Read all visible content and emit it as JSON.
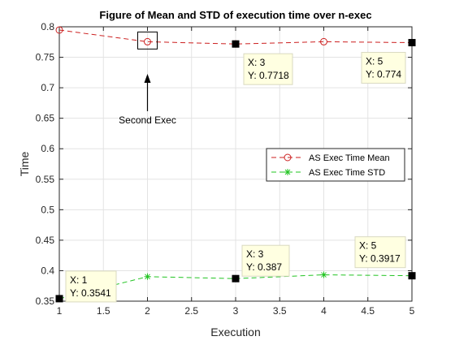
{
  "chart_data": {
    "type": "line",
    "title": "Figure of Mean and STD of execution time over n-exec",
    "xlabel": "Execution",
    "ylabel": "Time",
    "xlim": [
      1,
      5
    ],
    "ylim": [
      0.35,
      0.8
    ],
    "xticks": [
      1,
      1.5,
      2,
      2.5,
      3,
      3.5,
      4,
      4.5,
      5
    ],
    "xtick_labels": [
      "1",
      "1.5",
      "2",
      "2.5",
      "3",
      "3.5",
      "4",
      "4.5",
      "5"
    ],
    "yticks": [
      0.35,
      0.4,
      0.45,
      0.5,
      0.55,
      0.6,
      0.65,
      0.7,
      0.75,
      0.8
    ],
    "ytick_labels": [
      "0.35",
      "0.4",
      "0.45",
      "0.5",
      "0.55",
      "0.6",
      "0.65",
      "0.7",
      "0.75",
      "0.8"
    ],
    "grid": true,
    "legend_position": "middle-right",
    "series": [
      {
        "name": "AS Exec Time Mean",
        "color": "#cc1f1f",
        "marker": "circle",
        "x": [
          1,
          2,
          3,
          4,
          5
        ],
        "y": [
          0.7947,
          0.7755,
          0.7718,
          0.7755,
          0.774
        ]
      },
      {
        "name": "AS Exec Time STD",
        "color": "#22c422",
        "marker": "asterisk",
        "x": [
          1,
          2,
          3,
          4,
          5
        ],
        "y": [
          0.3541,
          0.3902,
          0.387,
          0.3932,
          0.3917
        ]
      }
    ],
    "datatips": [
      {
        "series": 0,
        "x": 3,
        "y": 0.7718,
        "line1": "X: 3",
        "line2": "Y: 0.7718"
      },
      {
        "series": 0,
        "x": 5,
        "y": 0.774,
        "line1": "X: 5",
        "line2": "Y: 0.774"
      },
      {
        "series": 1,
        "x": 1,
        "y": 0.3541,
        "line1": "X: 1",
        "line2": "Y: 0.3541"
      },
      {
        "series": 1,
        "x": 3,
        "y": 0.387,
        "line1": "X: 3",
        "line2": "Y: 0.387"
      },
      {
        "series": 1,
        "x": 5,
        "y": 0.3917,
        "line1": "X: 5",
        "line2": "Y: 0.3917"
      }
    ],
    "annotation": {
      "text": "Second Exec",
      "target_x": 2,
      "target_y": 0.7755,
      "arrow": "up"
    }
  }
}
